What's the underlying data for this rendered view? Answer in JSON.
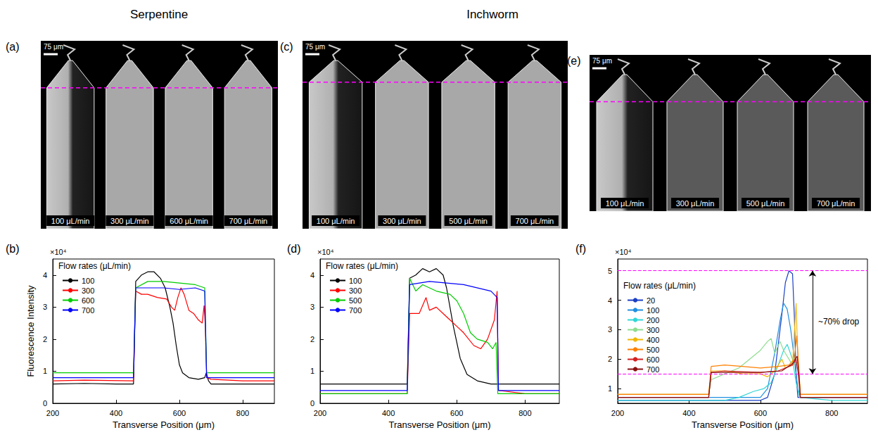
{
  "headers": [
    "Serpentine",
    "Inchworm"
  ],
  "image_panels": [
    {
      "panel": "(a)",
      "scale_bar": "75 μm",
      "flow_rates": [
        "100 μL/min",
        "300 μL/min",
        "600 μL/min",
        "700 μL/min"
      ]
    },
    {
      "panel": "(c)",
      "scale_bar": "75 μm",
      "flow_rates": [
        "100 μL/min",
        "300 μL/min",
        "500 μL/min",
        "700 μL/min"
      ]
    },
    {
      "panel": "(e)",
      "scale_bar": "75 μm",
      "flow_rates": [
        "100 μL/min",
        "300 μL/min",
        "500 μL/min",
        "700 μL/min"
      ]
    }
  ],
  "chart_data": [
    {
      "panel": "(b)",
      "type": "line",
      "x_label": "Transverse Position (μm)",
      "y_label": "Fluorescence Intensity",
      "y_multiplier": "×10⁴",
      "legend_title": "Flow rates (μL/min)",
      "xlim": [
        200,
        900
      ],
      "xticks": [
        200,
        400,
        600,
        800
      ],
      "ylim": [
        0,
        4.5
      ],
      "yticks": [
        0,
        1,
        2,
        3,
        4
      ],
      "grid": false,
      "legend": "upper left",
      "series": [
        {
          "name": "100",
          "color": "#000000",
          "x": [
            200,
            300,
            400,
            455,
            462,
            480,
            500,
            520,
            540,
            555,
            570,
            580,
            590,
            600,
            610,
            630,
            660,
            680,
            685,
            692,
            700,
            800,
            900
          ],
          "values": [
            0.6,
            0.62,
            0.6,
            0.6,
            3.8,
            4.0,
            4.1,
            4.1,
            3.9,
            3.6,
            3.0,
            2.5,
            1.8,
            1.2,
            0.95,
            0.8,
            0.75,
            0.8,
            0.95,
            0.7,
            0.6,
            0.6,
            0.6
          ]
        },
        {
          "name": "300",
          "color": "#ff0000",
          "x": [
            200,
            300,
            455,
            462,
            480,
            500,
            530,
            560,
            575,
            585,
            595,
            605,
            615,
            630,
            645,
            660,
            672,
            678,
            682,
            686,
            700,
            800,
            900
          ],
          "values": [
            0.7,
            0.72,
            0.7,
            3.5,
            3.4,
            3.4,
            3.3,
            3.25,
            3.0,
            2.9,
            3.3,
            3.6,
            3.4,
            2.9,
            2.8,
            2.6,
            2.5,
            3.05,
            2.4,
            0.8,
            0.75,
            0.7,
            0.7
          ]
        },
        {
          "name": "600",
          "color": "#00cc00",
          "x": [
            200,
            300,
            455,
            462,
            500,
            550,
            600,
            650,
            680,
            686,
            800,
            900
          ],
          "values": [
            0.95,
            0.95,
            0.95,
            3.6,
            3.8,
            3.8,
            3.75,
            3.7,
            3.6,
            0.95,
            0.95,
            0.95
          ]
        },
        {
          "name": "700",
          "color": "#0000ff",
          "x": [
            200,
            300,
            455,
            462,
            500,
            550,
            600,
            650,
            680,
            686,
            800,
            900
          ],
          "values": [
            0.8,
            0.8,
            0.8,
            3.6,
            3.6,
            3.6,
            3.55,
            3.6,
            3.5,
            0.8,
            0.8,
            0.8
          ]
        }
      ]
    },
    {
      "panel": "(d)",
      "type": "line",
      "x_label": "Transverse Position (μm)",
      "y_multiplier": "×10⁴",
      "legend_title": "Flow rates (μL/min)",
      "xlim": [
        200,
        900
      ],
      "xticks": [
        200,
        400,
        600,
        800
      ],
      "ylim": [
        0,
        4.5
      ],
      "yticks": [
        0,
        1,
        2,
        3,
        4
      ],
      "grid": false,
      "legend": "upper left",
      "series": [
        {
          "name": "100",
          "color": "#000000",
          "x": [
            200,
            300,
            455,
            462,
            480,
            500,
            520,
            540,
            560,
            570,
            590,
            610,
            630,
            660,
            700,
            800,
            900
          ],
          "values": [
            0.6,
            0.6,
            0.6,
            3.9,
            4.0,
            4.2,
            4.1,
            4.2,
            4.0,
            3.6,
            2.4,
            1.4,
            0.9,
            0.7,
            0.6,
            0.6,
            0.6
          ]
        },
        {
          "name": "300",
          "color": "#ff0000",
          "x": [
            200,
            300,
            455,
            462,
            490,
            510,
            520,
            540,
            560,
            580,
            600,
            620,
            650,
            670,
            690,
            710,
            718,
            722,
            800,
            900
          ],
          "values": [
            0.3,
            0.3,
            0.3,
            2.8,
            2.8,
            3.3,
            2.9,
            3.0,
            2.8,
            2.6,
            2.4,
            2.2,
            1.8,
            1.7,
            2.0,
            2.6,
            3.5,
            0.4,
            0.3,
            0.3
          ]
        },
        {
          "name": "500",
          "color": "#00cc00",
          "x": [
            200,
            300,
            455,
            462,
            480,
            500,
            540,
            580,
            600,
            620,
            640,
            660,
            690,
            705,
            715,
            720,
            800,
            900
          ],
          "values": [
            0.3,
            0.3,
            0.3,
            3.9,
            3.5,
            3.7,
            3.5,
            3.4,
            3.2,
            2.8,
            2.2,
            2.0,
            1.9,
            1.7,
            1.9,
            0.3,
            0.3,
            0.3
          ]
        },
        {
          "name": "700",
          "color": "#0000ff",
          "x": [
            200,
            300,
            455,
            462,
            520,
            620,
            700,
            718,
            722,
            800,
            900
          ],
          "values": [
            0.4,
            0.4,
            0.4,
            3.7,
            3.8,
            3.7,
            3.5,
            3.3,
            0.4,
            0.4,
            0.4
          ]
        }
      ]
    },
    {
      "panel": "(f)",
      "type": "line",
      "x_label": "Transverse Position (μm)",
      "y_multiplier": "×10⁴",
      "legend_title": "Flow rates (μL/min)",
      "xlim": [
        200,
        900
      ],
      "xticks": [
        200,
        400,
        600,
        800
      ],
      "ylim": [
        0.5,
        5.4
      ],
      "yticks": [
        1,
        2,
        3,
        4,
        5
      ],
      "grid": false,
      "legend": "center left",
      "reference_lines": [
        5,
        1.5
      ],
      "annotations": [
        "~70% drop"
      ],
      "series": [
        {
          "name": "20",
          "color": "#1a3fc4",
          "x": [
            200,
            400,
            600,
            620,
            640,
            660,
            670,
            680,
            690,
            695,
            700,
            705,
            800,
            900
          ],
          "values": [
            0.6,
            0.6,
            0.6,
            0.7,
            1.5,
            3.5,
            4.6,
            5.0,
            4.9,
            3.5,
            1.5,
            0.7,
            0.7,
            0.7
          ]
        },
        {
          "name": "100",
          "color": "#1f8fe0",
          "x": [
            200,
            400,
            600,
            620,
            640,
            655,
            665,
            675,
            685,
            695,
            705,
            712,
            800,
            900
          ],
          "values": [
            0.7,
            0.7,
            0.7,
            1.0,
            2.2,
            3.3,
            3.9,
            3.7,
            3.0,
            2.0,
            1.0,
            0.7,
            0.7,
            0.7
          ]
        },
        {
          "name": "200",
          "color": "#33d6d6",
          "x": [
            200,
            400,
            500,
            540,
            580,
            610,
            630,
            650,
            665,
            675,
            690,
            700,
            710,
            800,
            900
          ],
          "values": [
            0.6,
            0.6,
            0.6,
            0.7,
            0.9,
            1.0,
            1.2,
            1.8,
            2.3,
            2.5,
            2.0,
            1.2,
            0.7,
            0.6,
            0.6
          ]
        },
        {
          "name": "300",
          "color": "#8fdc8f",
          "x": [
            200,
            400,
            455,
            462,
            500,
            540,
            570,
            600,
            620,
            630,
            640,
            655,
            665,
            690,
            705,
            712,
            800,
            900
          ],
          "values": [
            0.8,
            0.8,
            0.8,
            1.3,
            1.5,
            1.7,
            2.0,
            2.3,
            2.6,
            2.7,
            2.2,
            2.6,
            2.3,
            1.8,
            1.9,
            0.8,
            0.8,
            0.8
          ]
        },
        {
          "name": "400",
          "color": "#f2b705",
          "x": [
            200,
            400,
            455,
            462,
            500,
            550,
            600,
            620,
            640,
            660,
            670,
            690,
            700,
            705,
            712,
            800,
            900
          ],
          "values": [
            0.8,
            0.8,
            0.8,
            1.6,
            1.6,
            1.5,
            1.5,
            1.4,
            1.6,
            2.0,
            1.7,
            1.8,
            3.9,
            2.0,
            0.8,
            0.8,
            0.8
          ]
        },
        {
          "name": "500",
          "color": "#ff8000",
          "x": [
            200,
            400,
            455,
            462,
            500,
            550,
            600,
            650,
            680,
            695,
            702,
            707,
            712,
            800,
            900
          ],
          "values": [
            0.8,
            0.8,
            0.8,
            1.75,
            1.8,
            1.75,
            1.7,
            1.75,
            1.8,
            2.0,
            2.8,
            1.8,
            0.8,
            0.8,
            0.8
          ]
        },
        {
          "name": "600",
          "color": "#d42020",
          "x": [
            200,
            400,
            455,
            462,
            500,
            600,
            650,
            690,
            700,
            706,
            712,
            800,
            900
          ],
          "values": [
            0.7,
            0.7,
            0.7,
            1.55,
            1.6,
            1.55,
            1.6,
            1.8,
            2.0,
            1.5,
            0.7,
            0.7,
            0.7
          ]
        },
        {
          "name": "700",
          "color": "#8b1010",
          "x": [
            200,
            400,
            455,
            462,
            500,
            600,
            660,
            690,
            703,
            708,
            712,
            800,
            900
          ],
          "values": [
            0.7,
            0.7,
            0.7,
            1.55,
            1.55,
            1.55,
            1.6,
            1.85,
            2.1,
            1.5,
            0.7,
            0.7,
            0.7
          ]
        }
      ]
    }
  ]
}
